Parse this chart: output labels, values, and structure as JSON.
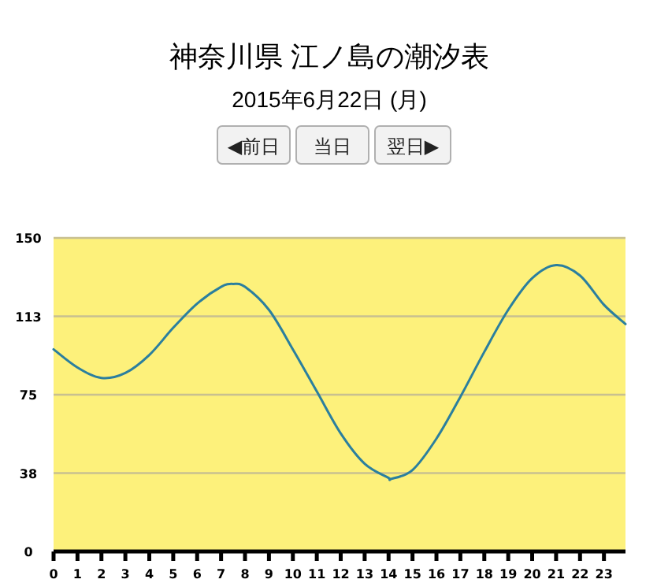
{
  "chart_data": {
    "type": "line",
    "title": "神奈川県 江ノ島の潮汐表",
    "subtitle": "2015年6月22日 (月)",
    "annotations": [
      "◀前日",
      "当日",
      "翌日▶"
    ],
    "x": [
      0,
      1,
      2,
      3,
      4,
      5,
      6,
      7,
      7.5,
      8,
      9,
      10,
      11,
      12,
      13,
      14,
      14.1,
      15,
      16,
      17,
      18,
      19,
      20,
      21,
      22,
      23,
      23.9
    ],
    "series": [
      {
        "color": "#2b7f9e",
        "values": [
          96.7,
          88,
          83,
          85.4,
          94,
          107,
          118.6,
          126.6,
          128,
          126.6,
          115.6,
          96.7,
          76.6,
          56.5,
          42,
          35.2,
          34.7,
          39,
          54,
          74,
          95.5,
          115.6,
          130.7,
          137,
          132,
          118,
          108.8
        ]
      }
    ],
    "xlim": [
      0,
      23.9
    ],
    "xticks": [
      0,
      1,
      2,
      3,
      4,
      5,
      6,
      7,
      8,
      9,
      10,
      11,
      12,
      13,
      14,
      15,
      16,
      17,
      18,
      19,
      20,
      21,
      22,
      23
    ],
    "ylim": [
      0,
      150
    ],
    "yticks": [
      0,
      {
        "value": 37.5,
        "label": "38"
      },
      75,
      {
        "value": 112.5,
        "label": "113"
      },
      150
    ],
    "grid": "y",
    "marker": "none",
    "line_style": "solid"
  }
}
